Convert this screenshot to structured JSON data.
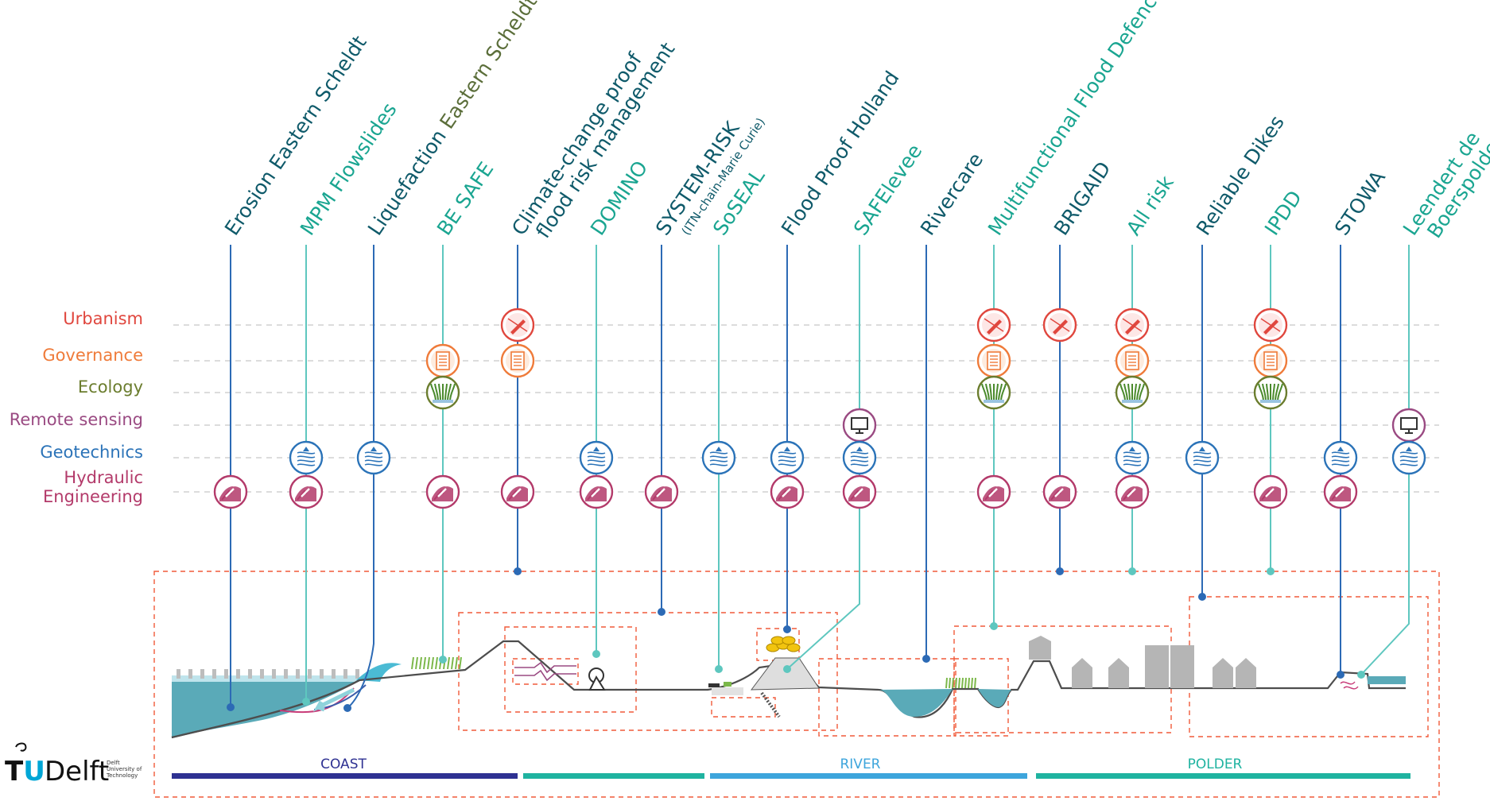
{
  "colors": {
    "dark_teal": "#0f5a6a",
    "light_teal": "#1aa591",
    "blue_line": "#2c6ab5",
    "teal_line": "#5ec7bf",
    "urbanism": "#e0473e",
    "governance": "#ef7b3a",
    "ecology": "#6b7d2e",
    "remote_sensing": "#9a4a82",
    "geotechnics": "#2b73b8",
    "hydraulic": "#b33a6a",
    "dashed_box": "#f15a3a",
    "water": "#5aaab8",
    "coast_bar": "#2e3192",
    "teal_bar": "#1fb3a0",
    "river_bar": "#3da5dc"
  },
  "projects": [
    {
      "id": "erosion",
      "label": "Erosion Eastern Scheldt",
      "label_color": "dark_teal",
      "line_color": "blue_line",
      "disciplines": [
        "hydraulic"
      ]
    },
    {
      "id": "mpm",
      "label": "MPM Flowslides",
      "label_color": "light_teal",
      "line_color": "teal_line",
      "disciplines": [
        "geotechnics",
        "hydraulic"
      ]
    },
    {
      "id": "liquefaction",
      "label_part1": "Liquefaction",
      "label_part2": " Eastern Scheldt",
      "label_color": "dark_teal",
      "line_color": "blue_line",
      "disciplines": [
        "geotechnics"
      ]
    },
    {
      "id": "besafe",
      "label": "BE SAFE",
      "label_color": "light_teal",
      "line_color": "teal_line",
      "disciplines": [
        "governance",
        "ecology",
        "hydraulic"
      ]
    },
    {
      "id": "climate",
      "label": "Climate-change proof",
      "label2": "flood risk management",
      "label_color": "dark_teal",
      "line_color": "blue_line",
      "disciplines": [
        "urbanism",
        "governance",
        "hydraulic"
      ]
    },
    {
      "id": "domino",
      "label": "DOMINO",
      "label_color": "light_teal",
      "line_color": "teal_line",
      "disciplines": [
        "geotechnics",
        "hydraulic"
      ]
    },
    {
      "id": "systemrisk",
      "label": "SYSTEM-RISK",
      "sublabel": "(ITN-chain-Marie Curie)",
      "label_color": "dark_teal",
      "line_color": "blue_line",
      "disciplines": [
        "hydraulic"
      ]
    },
    {
      "id": "soseal",
      "label": "SoSEAL",
      "label_color": "light_teal",
      "line_color": "teal_line",
      "disciplines": [
        "geotechnics"
      ]
    },
    {
      "id": "floodproof",
      "label": "Flood Proof Holland",
      "label_color": "dark_teal",
      "line_color": "blue_line",
      "disciplines": [
        "geotechnics",
        "hydraulic"
      ]
    },
    {
      "id": "safelevee",
      "label": "SAFElevee",
      "label_color": "light_teal",
      "line_color": "teal_line",
      "disciplines": [
        "remote_sensing",
        "geotechnics",
        "hydraulic"
      ]
    },
    {
      "id": "rivercare",
      "label": "Rivercare",
      "label_color": "dark_teal",
      "line_color": "blue_line",
      "disciplines": []
    },
    {
      "id": "multifunctional",
      "label": "Multifunctional Flood Defences",
      "label_color": "light_teal",
      "line_color": "teal_line",
      "disciplines": [
        "urbanism",
        "governance",
        "ecology",
        "hydraulic"
      ]
    },
    {
      "id": "brigaid",
      "label": "BRIGAID",
      "label_color": "dark_teal",
      "line_color": "blue_line",
      "disciplines": [
        "urbanism",
        "hydraulic"
      ]
    },
    {
      "id": "allrisk",
      "label": "All risk",
      "label_color": "light_teal",
      "line_color": "teal_line",
      "disciplines": [
        "urbanism",
        "governance",
        "ecology",
        "geotechnics",
        "hydraulic"
      ]
    },
    {
      "id": "reliable",
      "label": "Reliable Dikes",
      "label_color": "dark_teal",
      "line_color": "blue_line",
      "disciplines": [
        "geotechnics"
      ]
    },
    {
      "id": "ipdd",
      "label": "IPDD",
      "label_color": "light_teal",
      "line_color": "teal_line",
      "disciplines": [
        "urbanism",
        "governance",
        "ecology",
        "hydraulic"
      ]
    },
    {
      "id": "stowa",
      "label": "STOWA",
      "label_color": "dark_teal",
      "line_color": "blue_line",
      "disciplines": [
        "geotechnics",
        "hydraulic"
      ]
    },
    {
      "id": "leendert",
      "label": "Leendert de",
      "label2": "Boerspolder",
      "label_color": "light_teal",
      "line_color": "teal_line",
      "disciplines": [
        "remote_sensing",
        "geotechnics"
      ]
    }
  ],
  "disciplines": [
    {
      "id": "urbanism",
      "label": "Urbanism",
      "icon": "pencil-icon"
    },
    {
      "id": "governance",
      "label": "Governance",
      "icon": "document-icon"
    },
    {
      "id": "ecology",
      "label": "Ecology",
      "icon": "grass-icon"
    },
    {
      "id": "remote_sensing",
      "label": "Remote sensing",
      "icon": "monitor-icon"
    },
    {
      "id": "geotechnics",
      "label": "Geotechnics",
      "icon": "soil-icon"
    },
    {
      "id": "hydraulic",
      "label": "Hydraulic",
      "label2": "Engineering",
      "icon": "wrench-icon"
    }
  ],
  "zones": [
    {
      "label": "COAST",
      "color": "coast_bar"
    },
    {
      "label": "",
      "color": "teal_bar"
    },
    {
      "label": "RIVER",
      "color": "river_bar"
    },
    {
      "label": "POLDER",
      "color": "teal_bar"
    }
  ],
  "logo": {
    "word_tu": "TU",
    "word_delft": "Delft",
    "small_lines": [
      "Delft",
      "University of",
      "Technology"
    ]
  }
}
